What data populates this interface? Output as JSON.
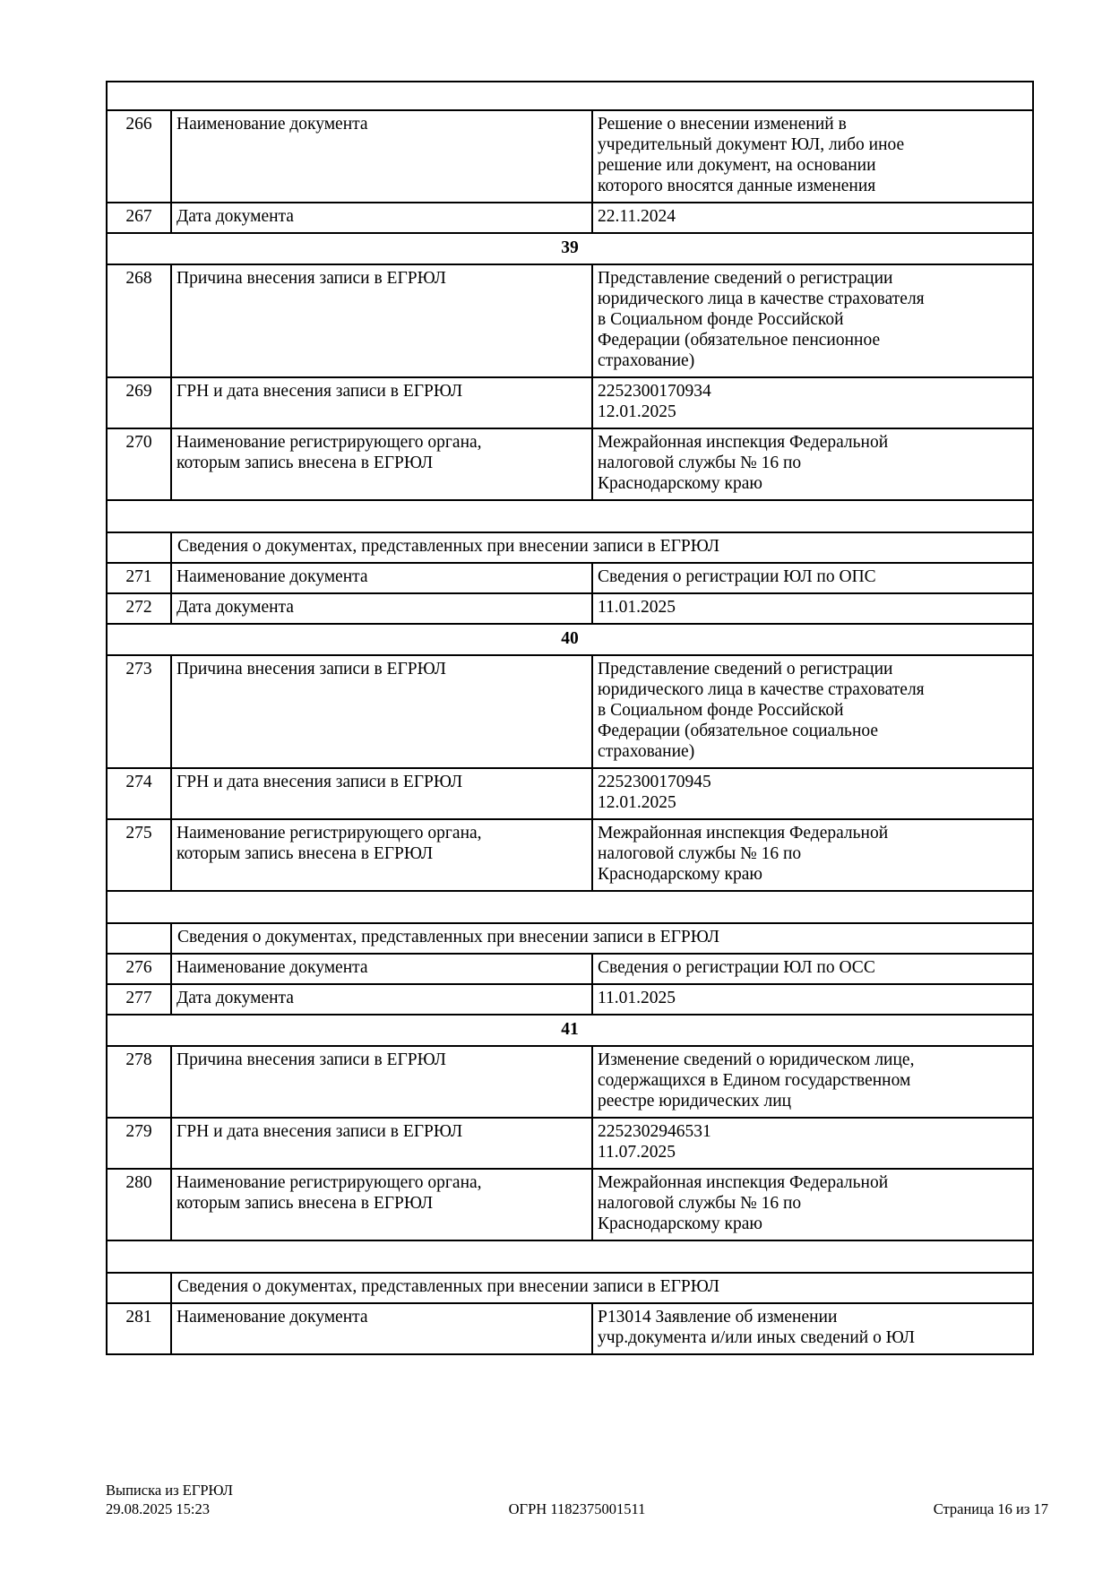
{
  "rows": [
    {
      "type": "top-spacer"
    },
    {
      "type": "record",
      "num": "266",
      "label": "Наименование документа",
      "value": "Решение о внесении изменений в\nучредительный документ ЮЛ, либо иное\nрешение или документ, на основании\nкоторого вносятся данные изменения"
    },
    {
      "type": "record",
      "num": "267",
      "label": "Дата документа",
      "value": "22.11.2024"
    },
    {
      "type": "section",
      "num": "39"
    },
    {
      "type": "record",
      "num": "268",
      "label": "Причина внесения записи в ЕГРЮЛ",
      "value": "Представление сведений о регистрации\nюридического лица в качестве страхователя\nв Социальном фонде Российской\nФедерации (обязательное пенсионное\nстрахование)"
    },
    {
      "type": "record",
      "num": "269",
      "label": "ГРН и дата внесения записи в ЕГРЮЛ",
      "value": "2252300170934\n12.01.2025"
    },
    {
      "type": "record",
      "num": "270",
      "label": "Наименование регистрирующего органа,\nкоторым запись внесена в ЕГРЮЛ",
      "value": "Межрайонная инспекция Федеральной\nналоговой службы № 16 по\nКраснодарскому краю"
    },
    {
      "type": "spacer"
    },
    {
      "type": "docs-header",
      "text": "Сведения о документах, представленных при внесении записи в ЕГРЮЛ"
    },
    {
      "type": "record",
      "num": "271",
      "label": "Наименование документа",
      "value": "Сведения о регистрации ЮЛ по ОПС"
    },
    {
      "type": "record",
      "num": "272",
      "label": "Дата документа",
      "value": "11.01.2025"
    },
    {
      "type": "section",
      "num": "40"
    },
    {
      "type": "record",
      "num": "273",
      "label": "Причина внесения записи в ЕГРЮЛ",
      "value": "Представление сведений о регистрации\nюридического лица в качестве страхователя\nв Социальном фонде Российской\nФедерации (обязательное социальное\nстрахование)"
    },
    {
      "type": "record",
      "num": "274",
      "label": "ГРН и дата внесения записи в ЕГРЮЛ",
      "value": "2252300170945\n12.01.2025"
    },
    {
      "type": "record",
      "num": "275",
      "label": "Наименование регистрирующего органа,\nкоторым запись внесена в ЕГРЮЛ",
      "value": "Межрайонная инспекция Федеральной\nналоговой службы № 16 по\nКраснодарскому краю"
    },
    {
      "type": "spacer"
    },
    {
      "type": "docs-header",
      "text": "Сведения о документах, представленных при внесении записи в ЕГРЮЛ"
    },
    {
      "type": "record",
      "num": "276",
      "label": "Наименование документа",
      "value": "Сведения о регистрации ЮЛ по ОСС"
    },
    {
      "type": "record",
      "num": "277",
      "label": "Дата документа",
      "value": "11.01.2025"
    },
    {
      "type": "section",
      "num": "41"
    },
    {
      "type": "record",
      "num": "278",
      "label": "Причина внесения записи в ЕГРЮЛ",
      "value": "Изменение сведений о юридическом лице,\nсодержащихся в Едином государственном\nреестре юридических лиц"
    },
    {
      "type": "record",
      "num": "279",
      "label": "ГРН и дата внесения записи в ЕГРЮЛ",
      "value": "2252302946531\n11.07.2025"
    },
    {
      "type": "record",
      "num": "280",
      "label": "Наименование регистрирующего органа,\nкоторым запись внесена в ЕГРЮЛ",
      "value": "Межрайонная инспекция Федеральной\nналоговой службы № 16 по\nКраснодарскому краю"
    },
    {
      "type": "spacer"
    },
    {
      "type": "docs-header",
      "text": "Сведения о документах, представленных при внесении записи в ЕГРЮЛ"
    },
    {
      "type": "record",
      "num": "281",
      "label": "Наименование документа",
      "value": "Р13014 Заявление об изменении\nучр.документа и/или иных сведений о ЮЛ"
    }
  ],
  "footer": {
    "doc_type": "Выписка из ЕГРЮЛ",
    "timestamp": "29.08.2025 15:23",
    "ogrn": "ОГРН 1182375001511",
    "page": "Страница 16 из 17"
  }
}
